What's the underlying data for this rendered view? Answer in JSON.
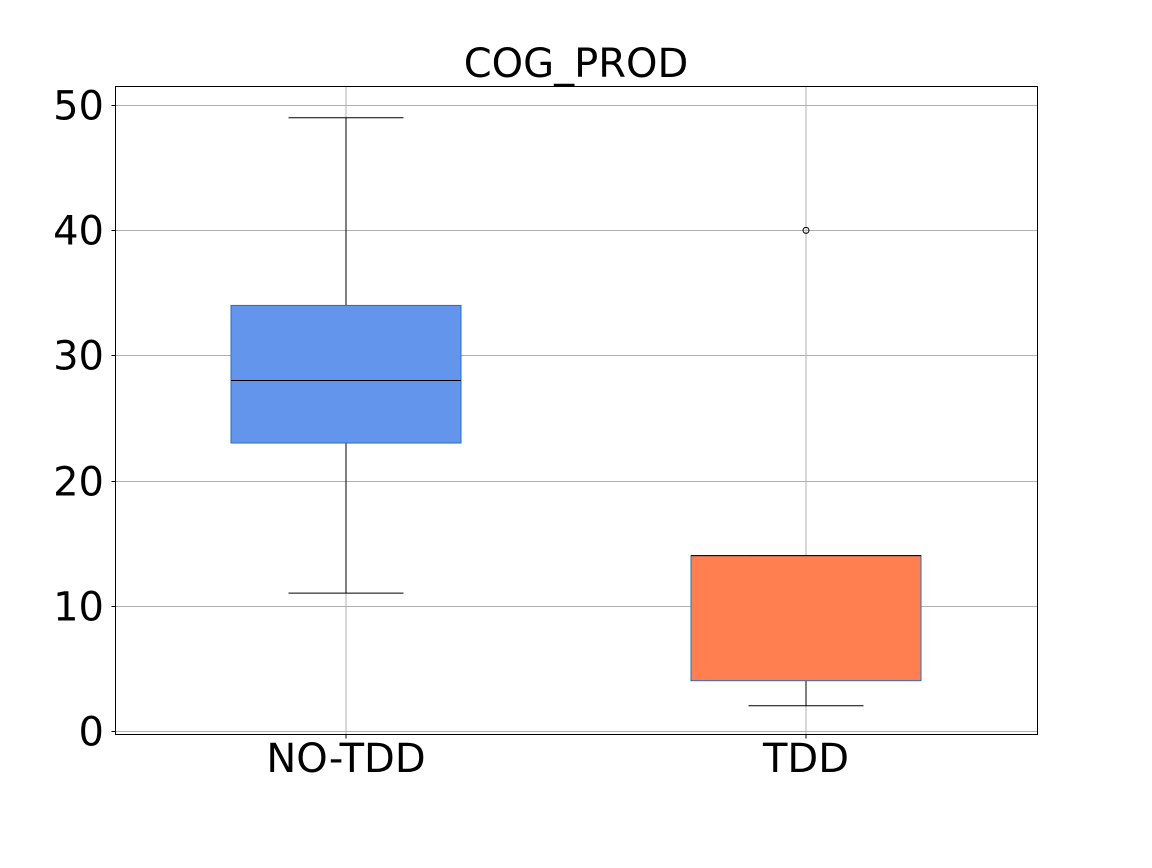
{
  "chart_data": {
    "type": "box",
    "title": "COG_PROD",
    "xlabel": "",
    "ylabel": "",
    "categories": [
      "NO-TDD",
      "TDD"
    ],
    "ylim": [
      -0.3,
      51.5
    ],
    "yticks": [
      0,
      10,
      20,
      30,
      40,
      50
    ],
    "grid": true,
    "boxes": [
      {
        "category": "NO-TDD",
        "whisker_low": 11,
        "q1": 23,
        "median": 28,
        "q3": 34,
        "whisker_high": 49,
        "outliers": [],
        "color": "#6495ED"
      },
      {
        "category": "TDD",
        "whisker_low": 2,
        "q1": 4,
        "median": 14,
        "q3": 14,
        "whisker_high": 14,
        "outliers": [
          40
        ],
        "color": "#FF7F50"
      }
    ]
  }
}
